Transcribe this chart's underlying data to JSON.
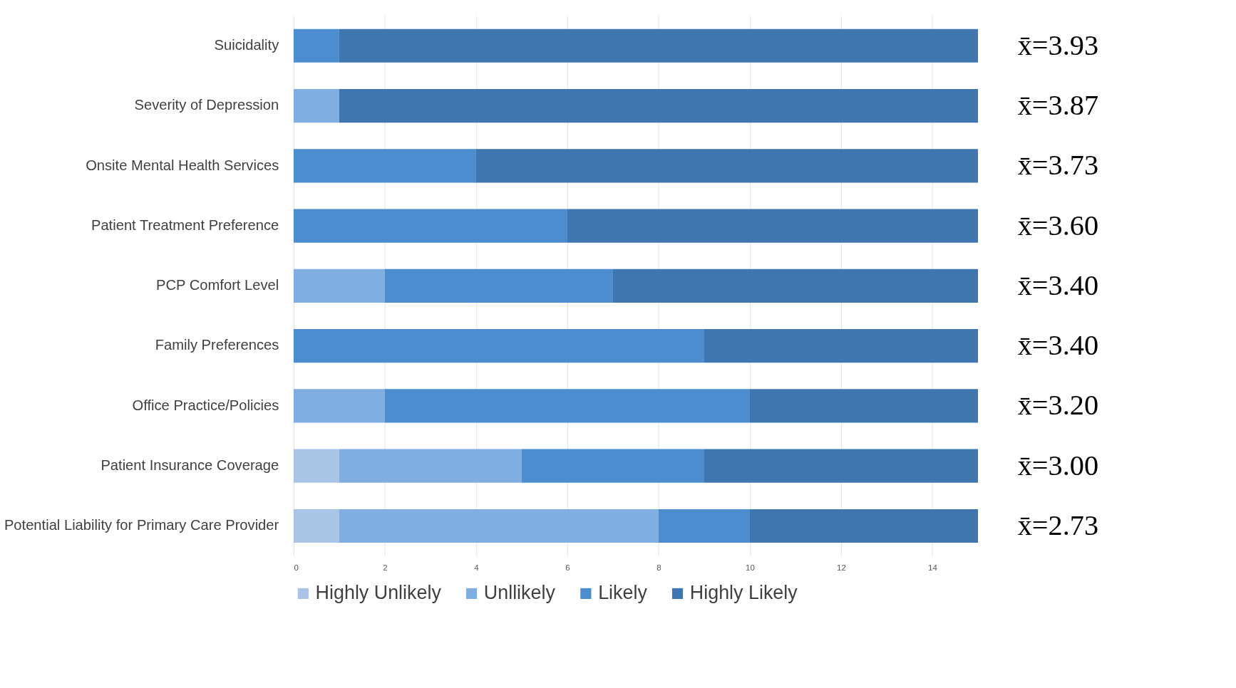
{
  "chart_data": {
    "type": "bar",
    "orientation": "horizontal",
    "stacked": true,
    "categories": [
      "Suicidality",
      "Severity of Depression",
      "Onsite Mental Health Services",
      "Patient Treatment Preference",
      "PCP Comfort Level",
      "Family Preferences",
      "Office Practice/Policies",
      "Patient Insurance Coverage",
      "Potential Liability for Primary Care Provider"
    ],
    "series": [
      {
        "name": "Highly Unlikely",
        "color": "#a9c4e6",
        "values": [
          0,
          0,
          0,
          0,
          0,
          0,
          0,
          1,
          1
        ]
      },
      {
        "name": "Unllikely",
        "color": "#80aee0",
        "values": [
          0,
          1,
          0,
          0,
          2,
          0,
          2,
          4,
          7
        ]
      },
      {
        "name": "Likely",
        "color": "#4b8dcf",
        "values": [
          1,
          0,
          4,
          6,
          5,
          9,
          8,
          4,
          2
        ]
      },
      {
        "name": "Highly Likely",
        "color": "#3f76b0",
        "values": [
          14,
          14,
          11,
          9,
          8,
          6,
          5,
          6,
          5
        ]
      }
    ],
    "xlim": [
      0,
      15
    ],
    "xticks": [
      0,
      2,
      4,
      6,
      8,
      10,
      12,
      14
    ],
    "grid": "x",
    "legend": "bottom",
    "annotations": [
      "x̄=3.93",
      "x̄=3.87",
      "x̄=3.73",
      "x̄=3.60",
      "x̄=3.40",
      "x̄=3.40",
      "x̄=3.20",
      "x̄=3.00",
      "x̄=2.73"
    ]
  }
}
